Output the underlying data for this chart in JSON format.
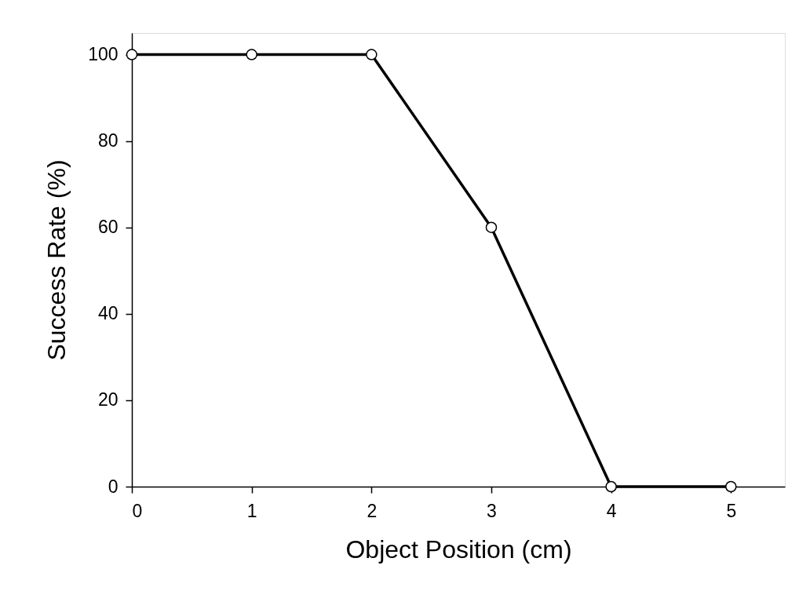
{
  "chart_data": {
    "type": "line",
    "xlabel": "Object Position (cm)",
    "ylabel": "Success Rate (%)",
    "x": [
      0,
      1,
      2,
      3,
      4,
      5
    ],
    "series": [
      {
        "color": "#000000",
        "values": [
          100,
          100,
          100,
          60,
          0,
          0
        ]
      }
    ],
    "xlim": [
      0,
      5.45
    ],
    "xticks": [
      0,
      1,
      2,
      3,
      4,
      5
    ],
    "ylim": [
      0,
      105
    ],
    "yticks": [
      0,
      20,
      40,
      60,
      80,
      100
    ],
    "grid": false,
    "marker": "circle",
    "line_style": "solid"
  }
}
